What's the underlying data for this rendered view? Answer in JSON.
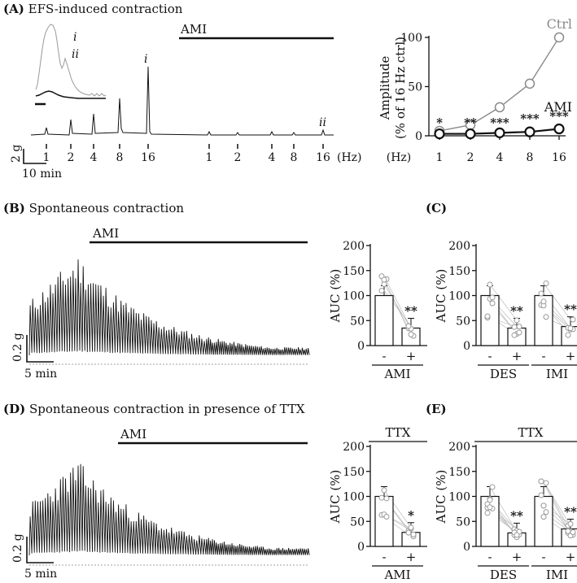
{
  "figure": {
    "panels": {
      "A": {
        "tag": "(A)",
        "title": "EFS-induced contraction"
      },
      "B": {
        "tag": "(B)",
        "title": "Spontaneous contraction"
      },
      "C": {
        "tag": "(C)"
      },
      "D": {
        "tag": "(D)",
        "title": "Spontaneous contraction in presence of TTX"
      },
      "E": {
        "tag": "(E)"
      }
    },
    "drug_label": "AMI",
    "ttx_label": "TTX",
    "hz_unit": "(Hz)",
    "trace_i": "i",
    "trace_ii": "ii",
    "scale_a": {
      "y": "2 g",
      "x": "10 min"
    },
    "scale_b": {
      "y": "0.2 g",
      "x": "5 min"
    },
    "scale_d": {
      "y": "0.2 g",
      "x": "5 min"
    },
    "efs_freqs_ctrl": [
      "1",
      "2",
      "4",
      "8",
      "16"
    ],
    "efs_freqs_ami": [
      "1",
      "2",
      "4",
      "8",
      "16"
    ],
    "colors": {
      "ctrl": "#8a8a8a",
      "ami": "#111111",
      "scatter": "#9a9a9a"
    }
  },
  "chart_data": [
    {
      "id": "A-right",
      "type": "line",
      "ylabel": "Amplitude",
      "ylabel2": "(% of 16 Hz ctrl)",
      "xlabel": "(Hz)",
      "categories": [
        "1",
        "2",
        "4",
        "8",
        "16"
      ],
      "yticks": [
        "0",
        "50",
        "100"
      ],
      "ylim": [
        0,
        100
      ],
      "series": [
        {
          "name": "Ctrl",
          "values": [
            5,
            11,
            29,
            53,
            100
          ]
        },
        {
          "name": "AMI",
          "values": [
            2,
            2,
            3,
            4,
            7
          ]
        }
      ],
      "significance": [
        "*",
        "**",
        "***",
        "***",
        "***"
      ]
    },
    {
      "id": "B-right",
      "type": "bar",
      "ylabel": "AUC (%)",
      "ylim": [
        0,
        200
      ],
      "yticks": [
        "0",
        "50",
        "100",
        "150",
        "200"
      ],
      "categories": [
        "-",
        "+"
      ],
      "groups": [
        {
          "label": "AMI",
          "values": [
            100,
            35
          ],
          "sig": "**"
        }
      ]
    },
    {
      "id": "C",
      "type": "bar",
      "ylabel": "AUC (%)",
      "ylim": [
        0,
        200
      ],
      "yticks": [
        "0",
        "50",
        "100",
        "150",
        "200"
      ],
      "categories": [
        "-",
        "+"
      ],
      "groups": [
        {
          "label": "DES",
          "values": [
            100,
            35
          ],
          "sig": "**"
        },
        {
          "label": "IMI",
          "values": [
            100,
            38
          ],
          "sig": "**"
        }
      ]
    },
    {
      "id": "D-right",
      "type": "bar",
      "ylabel": "AUC (%)",
      "ylim": [
        0,
        200
      ],
      "yticks": [
        "0",
        "50",
        "100",
        "150",
        "200"
      ],
      "categories": [
        "-",
        "+"
      ],
      "header": "TTX",
      "groups": [
        {
          "label": "AMI",
          "values": [
            100,
            28
          ],
          "sig": "*"
        }
      ]
    },
    {
      "id": "E",
      "type": "bar",
      "ylabel": "AUC (%)",
      "ylim": [
        0,
        200
      ],
      "yticks": [
        "0",
        "50",
        "100",
        "150",
        "200"
      ],
      "categories": [
        "-",
        "+"
      ],
      "header": "TTX",
      "groups": [
        {
          "label": "DES",
          "values": [
            100,
            27
          ],
          "sig": "**"
        },
        {
          "label": "IMI",
          "values": [
            100,
            35
          ],
          "sig": "**"
        }
      ]
    }
  ]
}
